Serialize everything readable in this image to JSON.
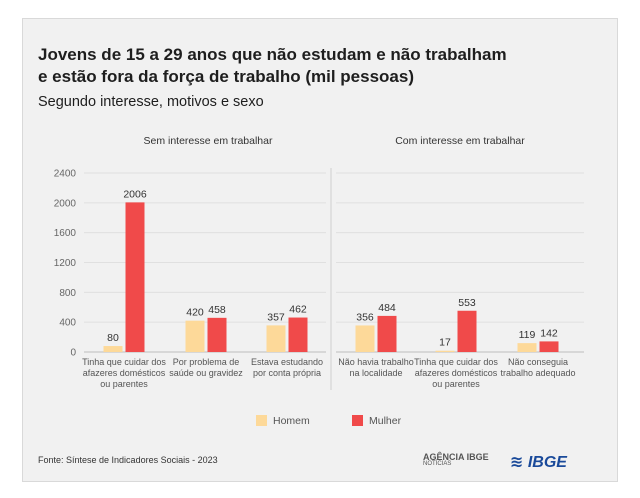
{
  "title_line1": "Jovens de 15 a 29 anos que não estudam e não trabalham",
  "title_line2": "e estão fora da força de trabalho (mil pessoas)",
  "subtitle": "Segundo interesse, motivos e sexo",
  "source": "Fonte: Síntese de Indicadores Sociais - 2023",
  "logos": {
    "agencia": "AGÊNCIA IBGE",
    "agencia_sub": "NOTÍCIAS",
    "ibge": "IBGE"
  },
  "colors": {
    "homem": "#fdd999",
    "mulher": "#f04a4a"
  },
  "chart_data": {
    "type": "bar",
    "ylim": [
      0,
      2400
    ],
    "yticks": [
      0,
      400,
      800,
      1200,
      1600,
      2000,
      2400
    ],
    "legend": [
      "Homem",
      "Mulher"
    ],
    "panels": [
      {
        "title": "Sem interesse em trabalhar",
        "categories": [
          [
            "Tinha que cuidar dos",
            "afazeres domésticos",
            "ou parentes"
          ],
          [
            "Por problema de",
            "saúde ou gravidez"
          ],
          [
            "Estava estudando",
            "por conta própria"
          ]
        ],
        "series": [
          {
            "name": "Homem",
            "values": [
              80,
              420,
              357
            ]
          },
          {
            "name": "Mulher",
            "values": [
              2006,
              458,
              462
            ]
          }
        ]
      },
      {
        "title": "Com interesse em trabalhar",
        "categories": [
          [
            "Não havia trabalho",
            "na localidade"
          ],
          [
            "Tinha que cuidar dos",
            "afazeres domésticos",
            "ou parentes"
          ],
          [
            "Não conseguia",
            "trabalho adequado"
          ]
        ],
        "series": [
          {
            "name": "Homem",
            "values": [
              356,
              17,
              119
            ]
          },
          {
            "name": "Mulher",
            "values": [
              484,
              553,
              142
            ]
          }
        ]
      }
    ]
  }
}
